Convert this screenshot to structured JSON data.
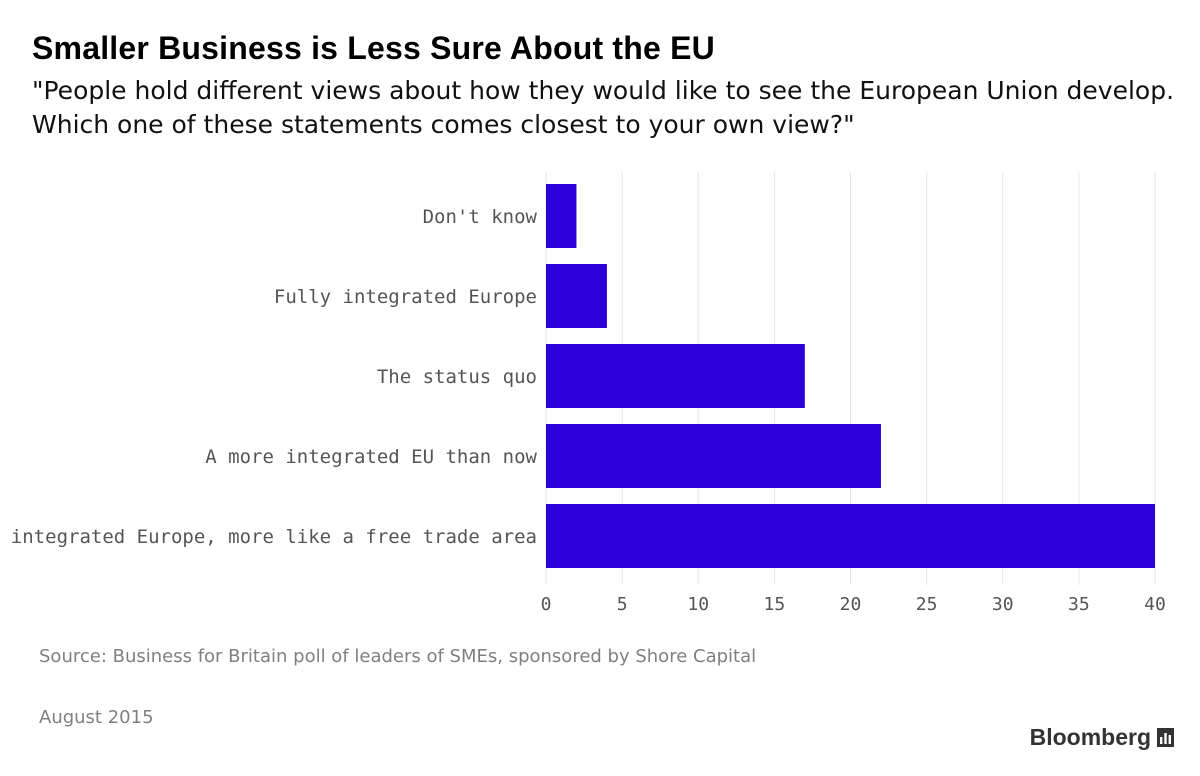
{
  "header": {
    "title": "Smaller Business is Less Sure About the EU",
    "subtitle_line1": "\"People hold different views about how they would like to see the European Union develop.",
    "subtitle_line2": "Which one of these statements comes closest to your own view?\""
  },
  "chart_data": {
    "type": "bar",
    "orientation": "horizontal",
    "categories": [
      "Don't know",
      "Fully integrated Europe",
      "The status quo",
      "A more integrated EU than now",
      "A less integrated Europe, more like a free trade area"
    ],
    "values": [
      2,
      4,
      17,
      22,
      40
    ],
    "xlim": [
      0,
      40
    ],
    "xticks": [
      0,
      5,
      10,
      15,
      20,
      25,
      30,
      35,
      40
    ],
    "grid": true,
    "bar_color": "#2a00d9",
    "grid_color": "#e6e6e6",
    "label_color": "#555555"
  },
  "footer": {
    "source": "Source: Business for Britain poll of leaders of SMEs, sponsored by Shore Capital",
    "date": "August 2015",
    "brand": "Bloomberg",
    "brand_icon": "bar-chart-icon"
  }
}
